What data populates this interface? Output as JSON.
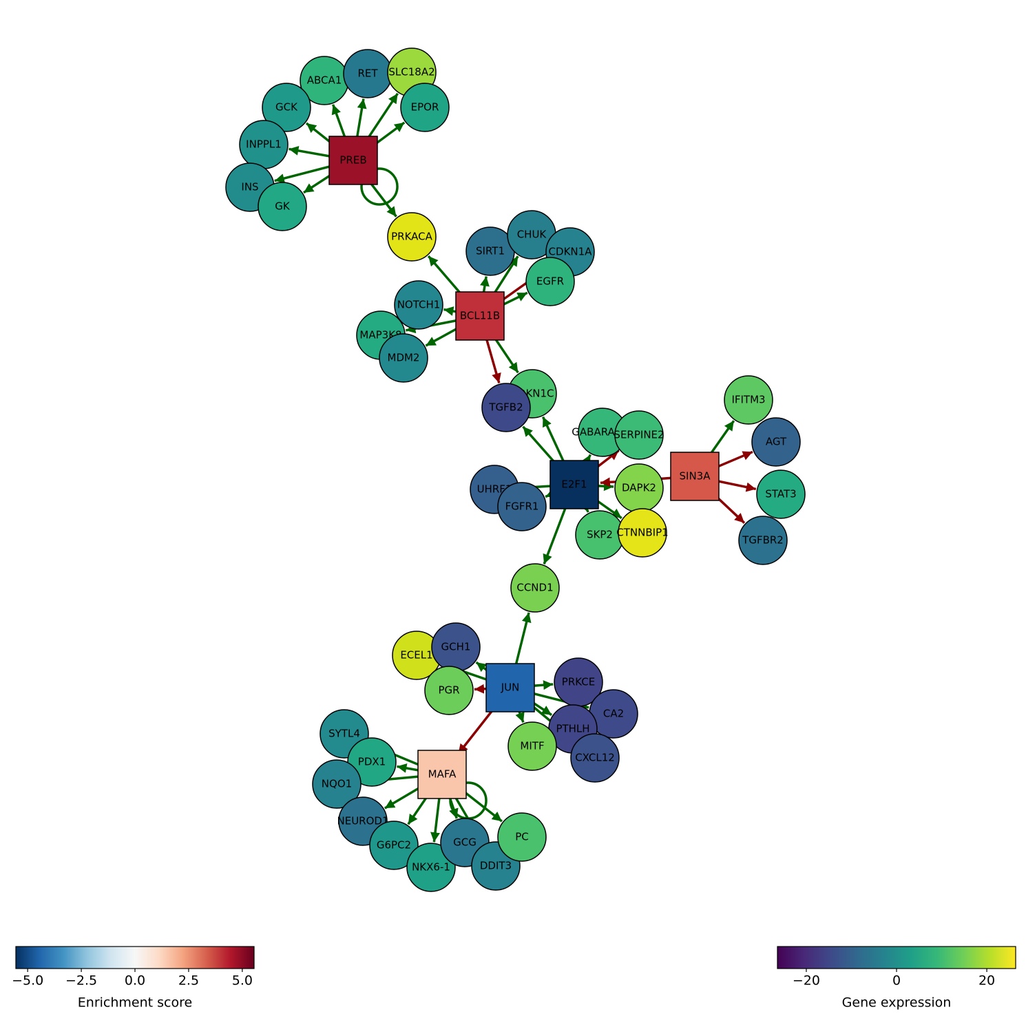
{
  "nodes": [
    {
      "label": "PREB",
      "shape": "square",
      "color": "#9b1127"
    },
    {
      "label": "BCL11B",
      "shape": "square",
      "color": "#c0303a"
    },
    {
      "label": "E2F1",
      "shape": "square",
      "color": "#08305f"
    },
    {
      "label": "SIN3A",
      "shape": "square",
      "color": "#d6584b"
    },
    {
      "label": "JUN",
      "shape": "square",
      "color": "#2166ac"
    },
    {
      "label": "MAFA",
      "shape": "square",
      "color": "#f9c5ab"
    },
    {
      "label": "ABCA1",
      "shape": "circle",
      "color": "#2fb47c"
    },
    {
      "label": "RET",
      "shape": "circle",
      "color": "#25788e"
    },
    {
      "label": "SLC18A2",
      "shape": "circle",
      "color": "#9bd93c"
    },
    {
      "label": "EPOR",
      "shape": "circle",
      "color": "#20a486"
    },
    {
      "label": "GCK",
      "shape": "circle",
      "color": "#1f9a8a"
    },
    {
      "label": "INPPL1",
      "shape": "circle",
      "color": "#21918c"
    },
    {
      "label": "INS",
      "shape": "circle",
      "color": "#228c8d"
    },
    {
      "label": "GK",
      "shape": "circle",
      "color": "#22a884"
    },
    {
      "label": "PRKACA",
      "shape": "circle",
      "color": "#e2e418"
    },
    {
      "label": "SIRT1",
      "shape": "circle",
      "color": "#2d708e"
    },
    {
      "label": "CHUK",
      "shape": "circle",
      "color": "#277f8e"
    },
    {
      "label": "CDKN1A",
      "shape": "circle",
      "color": "#26828e"
    },
    {
      "label": "EGFR",
      "shape": "circle",
      "color": "#2eb37c"
    },
    {
      "label": "NOTCH1",
      "shape": "circle",
      "color": "#24868e"
    },
    {
      "label": "MAP3K8",
      "shape": "circle",
      "color": "#25ab82"
    },
    {
      "label": "MDM2",
      "shape": "circle",
      "color": "#23898e"
    },
    {
      "label": "CDKN1C",
      "shape": "circle",
      "color": "#4ac16d"
    },
    {
      "label": "TGFB2",
      "shape": "circle",
      "color": "#3e4989"
    },
    {
      "label": "GABARAPL1",
      "shape": "circle",
      "color": "#35b779"
    },
    {
      "label": "SERPINE2",
      "shape": "circle",
      "color": "#3bbb75"
    },
    {
      "label": "UHRF1",
      "shape": "circle",
      "color": "#355f8d"
    },
    {
      "label": "FGFR1",
      "shape": "circle",
      "color": "#33638d"
    },
    {
      "label": "DAPK2",
      "shape": "circle",
      "color": "#84d44b"
    },
    {
      "label": "SKP2",
      "shape": "circle",
      "color": "#48c16e"
    },
    {
      "label": "CTNNBIP1",
      "shape": "circle",
      "color": "#e5e419"
    },
    {
      "label": "IFITM3",
      "shape": "circle",
      "color": "#5ec962"
    },
    {
      "label": "AGT",
      "shape": "circle",
      "color": "#33638d"
    },
    {
      "label": "STAT3",
      "shape": "circle",
      "color": "#25ab82"
    },
    {
      "label": "TGFBR2",
      "shape": "circle",
      "color": "#2c728e"
    },
    {
      "label": "CCND1",
      "shape": "circle",
      "color": "#7ad151"
    },
    {
      "label": "ECEL1",
      "shape": "circle",
      "color": "#d0e11c"
    },
    {
      "label": "GCH1",
      "shape": "circle",
      "color": "#3b528b"
    },
    {
      "label": "PGR",
      "shape": "circle",
      "color": "#6ccd5a"
    },
    {
      "label": "PRKCE",
      "shape": "circle",
      "color": "#414487"
    },
    {
      "label": "CA2",
      "shape": "circle",
      "color": "#3e4a89"
    },
    {
      "label": "PTHLH",
      "shape": "circle",
      "color": "#404688"
    },
    {
      "label": "CXCL12",
      "shape": "circle",
      "color": "#3b528b"
    },
    {
      "label": "MITF",
      "shape": "circle",
      "color": "#75d054"
    },
    {
      "label": "SYTL4",
      "shape": "circle",
      "color": "#238a8d"
    },
    {
      "label": "PDX1",
      "shape": "circle",
      "color": "#22a785"
    },
    {
      "label": "NQO1",
      "shape": "circle",
      "color": "#26828e"
    },
    {
      "label": "NEUROD1",
      "shape": "circle",
      "color": "#2c718e"
    },
    {
      "label": "G6PC2",
      "shape": "circle",
      "color": "#1f988b"
    },
    {
      "label": "NKX6-1",
      "shape": "circle",
      "color": "#1fa188"
    },
    {
      "label": "GCG",
      "shape": "circle",
      "color": "#2a768e"
    },
    {
      "label": "DDIT3",
      "shape": "circle",
      "color": "#26828e"
    },
    {
      "label": "PC",
      "shape": "circle",
      "color": "#4ac16d"
    }
  ],
  "edges": [
    {
      "from": "PREB",
      "to": "ABCA1",
      "color": "#006400"
    },
    {
      "from": "PREB",
      "to": "RET",
      "color": "#006400"
    },
    {
      "from": "PREB",
      "to": "SLC18A2",
      "color": "#006400"
    },
    {
      "from": "PREB",
      "to": "EPOR",
      "color": "#006400"
    },
    {
      "from": "PREB",
      "to": "GCK",
      "color": "#006400"
    },
    {
      "from": "PREB",
      "to": "INPPL1",
      "color": "#006400"
    },
    {
      "from": "PREB",
      "to": "INS",
      "color": "#006400"
    },
    {
      "from": "PREB",
      "to": "GK",
      "color": "#006400"
    },
    {
      "from": "PREB",
      "to": "PRKACA",
      "color": "#006400"
    },
    {
      "from": "PREB",
      "to": "PREB",
      "color": "#006400"
    },
    {
      "from": "BCL11B",
      "to": "PRKACA",
      "color": "#006400"
    },
    {
      "from": "BCL11B",
      "to": "SIRT1",
      "color": "#006400"
    },
    {
      "from": "BCL11B",
      "to": "CHUK",
      "color": "#006400"
    },
    {
      "from": "BCL11B",
      "to": "CDKN1A",
      "color": "#8b0000"
    },
    {
      "from": "BCL11B",
      "to": "EGFR",
      "color": "#006400"
    },
    {
      "from": "BCL11B",
      "to": "NOTCH1",
      "color": "#006400"
    },
    {
      "from": "BCL11B",
      "to": "MAP3K8",
      "color": "#006400"
    },
    {
      "from": "BCL11B",
      "to": "MDM2",
      "color": "#006400"
    },
    {
      "from": "BCL11B",
      "to": "TGFB2",
      "color": "#8b0000"
    },
    {
      "from": "BCL11B",
      "to": "CDKN1C",
      "color": "#006400"
    },
    {
      "from": "E2F1",
      "to": "TGFB2",
      "color": "#006400"
    },
    {
      "from": "E2F1",
      "to": "CDKN1C",
      "color": "#006400"
    },
    {
      "from": "E2F1",
      "to": "GABARAPL1",
      "color": "#006400"
    },
    {
      "from": "E2F1",
      "to": "SERPINE2",
      "color": "#8b0000"
    },
    {
      "from": "E2F1",
      "to": "UHRF1",
      "color": "#006400"
    },
    {
      "from": "E2F1",
      "to": "FGFR1",
      "color": "#006400"
    },
    {
      "from": "E2F1",
      "to": "DAPK2",
      "color": "#006400"
    },
    {
      "from": "E2F1",
      "to": "SKP2",
      "color": "#006400"
    },
    {
      "from": "E2F1",
      "to": "CTNNBIP1",
      "color": "#006400"
    },
    {
      "from": "E2F1",
      "to": "CCND1",
      "color": "#006400"
    },
    {
      "from": "SIN3A",
      "to": "E2F1",
      "color": "#8b0000"
    },
    {
      "from": "SIN3A",
      "to": "IFITM3",
      "color": "#006400"
    },
    {
      "from": "SIN3A",
      "to": "AGT",
      "color": "#8b0000"
    },
    {
      "from": "SIN3A",
      "to": "STAT3",
      "color": "#8b0000"
    },
    {
      "from": "SIN3A",
      "to": "TGFBR2",
      "color": "#8b0000"
    },
    {
      "from": "JUN",
      "to": "CCND1",
      "color": "#006400"
    },
    {
      "from": "JUN",
      "to": "GCH1",
      "color": "#006400"
    },
    {
      "from": "JUN",
      "to": "ECEL1",
      "color": "#006400"
    },
    {
      "from": "JUN",
      "to": "PGR",
      "color": "#8b0000"
    },
    {
      "from": "JUN",
      "to": "PRKCE",
      "color": "#006400"
    },
    {
      "from": "JUN",
      "to": "CA2",
      "color": "#006400"
    },
    {
      "from": "JUN",
      "to": "PTHLH",
      "color": "#006400"
    },
    {
      "from": "JUN",
      "to": "CXCL12",
      "color": "#006400"
    },
    {
      "from": "JUN",
      "to": "MITF",
      "color": "#006400"
    },
    {
      "from": "JUN",
      "to": "MAFA",
      "color": "#8b0000"
    },
    {
      "from": "MAFA",
      "to": "SYTL4",
      "color": "#006400"
    },
    {
      "from": "MAFA",
      "to": "PDX1",
      "color": "#006400"
    },
    {
      "from": "MAFA",
      "to": "NQO1",
      "color": "#006400"
    },
    {
      "from": "MAFA",
      "to": "NEUROD1",
      "color": "#006400"
    },
    {
      "from": "MAFA",
      "to": "G6PC2",
      "color": "#006400"
    },
    {
      "from": "MAFA",
      "to": "NKX6-1",
      "color": "#006400"
    },
    {
      "from": "MAFA",
      "to": "GCG",
      "color": "#006400"
    },
    {
      "from": "MAFA",
      "to": "DDIT3",
      "color": "#006400"
    },
    {
      "from": "MAFA",
      "to": "PC",
      "color": "#006400"
    },
    {
      "from": "MAFA",
      "to": "MAFA",
      "color": "#006400"
    }
  ],
  "colorbars": [
    {
      "label": "Enrichment score",
      "lim": [
        -5.55,
        5.55
      ],
      "colors": [
        "#053061",
        "#2166ac",
        "#4393c3",
        "#92c5de",
        "#d1e5f0",
        "#f7f7f7",
        "#fddbc7",
        "#f4a582",
        "#d6604d",
        "#b2182b",
        "#67001f"
      ],
      "ticks": [
        {
          "value": -5,
          "label": "−5.0"
        },
        {
          "value": -2.5,
          "label": "−2.5"
        },
        {
          "value": 0,
          "label": "0.0"
        },
        {
          "value": 2.5,
          "label": "2.5"
        },
        {
          "value": 5,
          "label": "5.0"
        }
      ]
    },
    {
      "label": "Gene expression",
      "lim": [
        -26.4,
        26.4
      ],
      "colors": [
        "#440154",
        "#482878",
        "#3e4989",
        "#31688e",
        "#26828e",
        "#1f9e89",
        "#35b779",
        "#6ece58",
        "#b5de2b",
        "#fde725"
      ],
      "ticks": [
        {
          "value": -20,
          "label": "−20"
        },
        0,
        20
      ]
    }
  ]
}
